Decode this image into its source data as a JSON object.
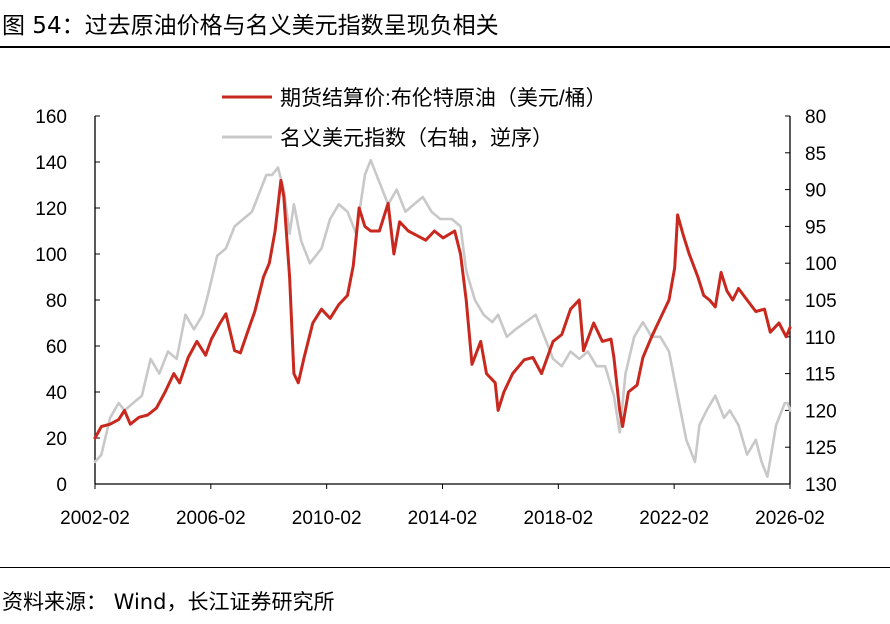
{
  "title": "图 54：过去原油价格与名义美元指数呈现负相关",
  "source": "资料来源：  Wind，长江证券研究所",
  "colors": {
    "oil": "#C8281E",
    "dxy": "#C8C8C8",
    "axis": "#000000"
  },
  "chart_data": {
    "type": "line",
    "xlabel": "",
    "ylabel": "",
    "x_tick_labels": [
      "2002-02",
      "2006-02",
      "2010-02",
      "2014-02",
      "2018-02",
      "2022-02",
      "2026-02"
    ],
    "x_tick_values": [
      2002.08,
      2006.08,
      2010.08,
      2014.08,
      2018.08,
      2022.08,
      2026.08
    ],
    "xlim": [
      2002.08,
      2026.08
    ],
    "left_axis": {
      "ticks": [
        0,
        20,
        40,
        60,
        80,
        100,
        120,
        140,
        160
      ],
      "ylim": [
        0,
        160
      ]
    },
    "right_axis": {
      "ticks": [
        80,
        85,
        90,
        95,
        100,
        105,
        110,
        115,
        120,
        125,
        130
      ],
      "ylim": [
        80,
        130
      ],
      "inverted": true
    },
    "legend_position": "top-center",
    "series": [
      {
        "name": "期货结算价:布伦特原油（美元/桶）",
        "axis": "left",
        "color": "#C8281E",
        "x": [
          2002.08,
          2002.3,
          2002.6,
          2002.9,
          2003.1,
          2003.3,
          2003.6,
          2003.9,
          2004.2,
          2004.5,
          2004.8,
          2005.0,
          2005.3,
          2005.6,
          2005.9,
          2006.1,
          2006.4,
          2006.6,
          2006.9,
          2007.1,
          2007.4,
          2007.6,
          2007.9,
          2008.1,
          2008.3,
          2008.5,
          2008.6,
          2008.8,
          2008.95,
          2009.1,
          2009.3,
          2009.6,
          2009.9,
          2010.2,
          2010.5,
          2010.8,
          2011.0,
          2011.2,
          2011.4,
          2011.6,
          2011.9,
          2012.2,
          2012.4,
          2012.6,
          2012.9,
          2013.2,
          2013.5,
          2013.8,
          2014.1,
          2014.5,
          2014.7,
          2014.9,
          2015.1,
          2015.4,
          2015.6,
          2015.9,
          2016.0,
          2016.2,
          2016.5,
          2016.9,
          2017.2,
          2017.5,
          2017.9,
          2018.2,
          2018.5,
          2018.8,
          2018.95,
          2019.3,
          2019.6,
          2019.9,
          2020.0,
          2020.2,
          2020.3,
          2020.5,
          2020.8,
          2021.0,
          2021.3,
          2021.6,
          2021.9,
          2022.1,
          2022.2,
          2022.4,
          2022.6,
          2022.9,
          2023.1,
          2023.3,
          2023.5,
          2023.7,
          2023.9,
          2024.1,
          2024.3,
          2024.6,
          2024.9,
          2025.2,
          2025.4,
          2025.7,
          2025.95,
          2026.08
        ],
        "values": [
          20,
          25,
          26,
          28,
          32,
          26,
          29,
          30,
          33,
          40,
          48,
          44,
          55,
          62,
          56,
          63,
          70,
          74,
          58,
          57,
          68,
          75,
          90,
          96,
          110,
          132,
          125,
          90,
          48,
          44,
          55,
          70,
          76,
          72,
          78,
          82,
          95,
          120,
          112,
          110,
          110,
          122,
          100,
          114,
          110,
          108,
          106,
          110,
          107,
          110,
          100,
          80,
          52,
          62,
          48,
          44,
          32,
          40,
          48,
          54,
          55,
          48,
          62,
          65,
          76,
          80,
          58,
          70,
          62,
          63,
          55,
          32,
          25,
          40,
          43,
          55,
          64,
          72,
          80,
          94,
          117,
          108,
          100,
          90,
          82,
          80,
          77,
          92,
          84,
          80,
          85,
          80,
          75,
          76,
          66,
          70,
          64,
          68
        ]
      },
      {
        "name": "名义美元指数（右轴，逆序）",
        "axis": "right",
        "color": "#C8C8C8",
        "x": [
          2002.08,
          2002.3,
          2002.6,
          2002.9,
          2003.1,
          2003.4,
          2003.7,
          2004.0,
          2004.3,
          2004.6,
          2004.9,
          2005.2,
          2005.5,
          2005.8,
          2006.0,
          2006.3,
          2006.6,
          2006.9,
          2007.2,
          2007.5,
          2007.8,
          2008.0,
          2008.2,
          2008.4,
          2008.6,
          2008.8,
          2008.95,
          2009.2,
          2009.5,
          2009.9,
          2010.2,
          2010.5,
          2010.8,
          2011.1,
          2011.4,
          2011.6,
          2011.9,
          2012.2,
          2012.5,
          2012.8,
          2013.1,
          2013.4,
          2013.7,
          2014.0,
          2014.4,
          2014.7,
          2014.9,
          2015.2,
          2015.5,
          2015.8,
          2016.0,
          2016.3,
          2016.6,
          2016.95,
          2017.3,
          2017.6,
          2017.9,
          2018.2,
          2018.5,
          2018.8,
          2019.1,
          2019.4,
          2019.7,
          2020.0,
          2020.2,
          2020.4,
          2020.7,
          2021.0,
          2021.3,
          2021.6,
          2021.9,
          2022.1,
          2022.3,
          2022.5,
          2022.8,
          2022.95,
          2023.2,
          2023.5,
          2023.8,
          2024.0,
          2024.3,
          2024.6,
          2024.9,
          2025.1,
          2025.3,
          2025.6,
          2025.9,
          2026.0,
          2026.08
        ],
        "values": [
          127,
          126,
          121,
          119,
          120,
          119,
          118,
          113,
          115,
          112,
          113,
          107,
          109,
          107,
          104,
          99,
          98,
          95,
          94,
          93,
          90,
          88,
          88,
          87,
          90,
          96,
          92,
          97,
          100,
          98,
          94,
          92,
          93,
          96,
          88,
          86,
          89,
          92,
          90,
          93,
          92,
          91,
          93,
          94,
          94,
          95,
          101,
          105,
          107,
          108,
          107,
          110,
          109,
          108,
          107,
          110,
          113,
          114,
          112,
          113,
          112,
          114,
          114,
          118,
          123,
          115,
          110,
          108,
          110,
          110,
          112,
          116,
          120,
          124,
          127,
          122,
          120,
          118,
          121,
          120,
          122,
          126,
          124,
          127,
          129,
          122,
          119,
          119,
          120
        ]
      }
    ]
  }
}
